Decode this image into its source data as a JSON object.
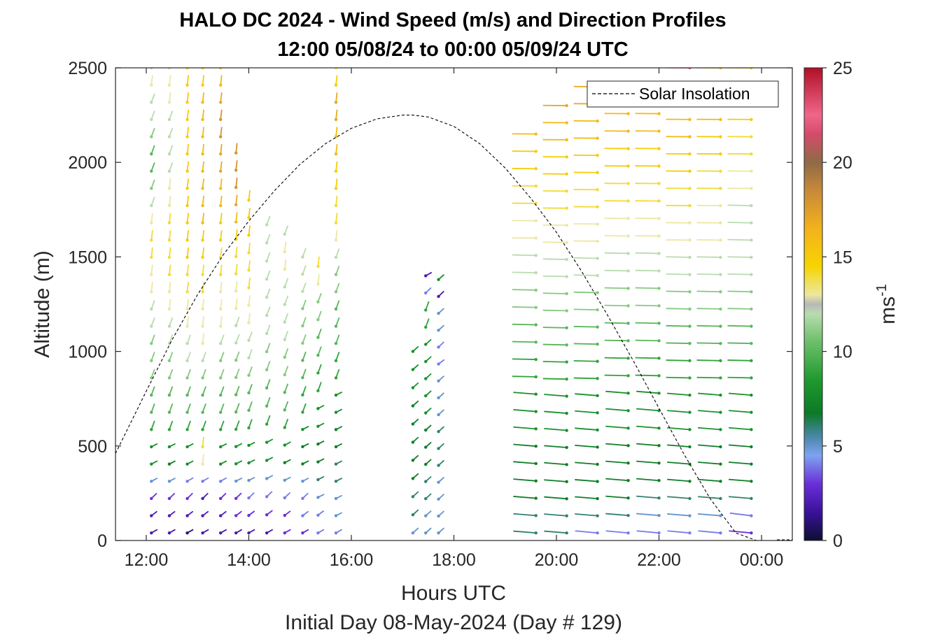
{
  "chart_data": {
    "type": "wind-barb-profile",
    "title_line1": "HALO DC 2024 - Wind Speed (m/s) and Direction Profiles",
    "title_line2": "12:00 05/08/24 to 00:00 05/09/24  UTC",
    "xlabel": "Hours UTC",
    "subtitle": "Initial Day 08-May-2024 (Day # 129)",
    "ylabel": "Altitude (m)",
    "colorbar_label": "ms",
    "colorbar_label_exp": "-1",
    "xlim": [
      11.4,
      24.6
    ],
    "ylim": [
      0,
      2500
    ],
    "x_ticks": [
      12,
      14,
      16,
      18,
      20,
      22,
      24
    ],
    "x_tick_labels": [
      "12:00",
      "14:00",
      "16:00",
      "18:00",
      "20:00",
      "22:00",
      "00:00"
    ],
    "y_ticks": [
      0,
      500,
      1000,
      1500,
      2000,
      2500
    ],
    "y_tick_labels": [
      "0",
      "500",
      "1000",
      "1500",
      "2000",
      "2500"
    ],
    "colorbar_range": [
      0,
      25
    ],
    "colorbar_ticks": [
      0,
      5,
      10,
      15,
      20,
      25
    ],
    "colorbar_tick_labels": [
      "0",
      "5",
      "10",
      "15",
      "20",
      "25"
    ],
    "legend": {
      "entries": [
        "Solar Insolation"
      ],
      "placement": "top-right",
      "style": "dashed-black"
    },
    "solar_insolation_curve": {
      "x": [
        11.4,
        12.0,
        12.5,
        13.0,
        13.5,
        14.0,
        14.5,
        15.0,
        15.5,
        16.0,
        16.5,
        17.0,
        17.2,
        17.5,
        18.0,
        18.5,
        19.0,
        19.5,
        20.0,
        20.5,
        21.0,
        21.5,
        22.0,
        22.5,
        23.0,
        23.5,
        23.9
      ],
      "y": [
        460,
        790,
        1060,
        1300,
        1510,
        1690,
        1850,
        1990,
        2100,
        2180,
        2230,
        2250,
        2250,
        2240,
        2190,
        2100,
        1970,
        1810,
        1630,
        1420,
        1190,
        950,
        700,
        450,
        220,
        40,
        0
      ]
    },
    "profiles": [
      {
        "time": 12.1,
        "top": 2500,
        "speeds": [
          2,
          2,
          3,
          5,
          8,
          8,
          9,
          10,
          10,
          11,
          11,
          11,
          12,
          12,
          13,
          13,
          14,
          14,
          13,
          12,
          11,
          10,
          10,
          11,
          12,
          12,
          13,
          12
        ]
      },
      {
        "time": 12.45,
        "top": 2500,
        "speeds": [
          2,
          2,
          3,
          5,
          7,
          8,
          9,
          10,
          10,
          11,
          11,
          12,
          12,
          13,
          13,
          14,
          14,
          14,
          14,
          13,
          13,
          12,
          12,
          12,
          12,
          13,
          13,
          12
        ]
      },
      {
        "time": 12.8,
        "top": 2500,
        "speeds": [
          1,
          2,
          3,
          4,
          8,
          8,
          9,
          10,
          10,
          11,
          12,
          12,
          13,
          13,
          14,
          14,
          15,
          15,
          15,
          15,
          15,
          15,
          15,
          15,
          15,
          15,
          15,
          15
        ]
      },
      {
        "time": 13.1,
        "top": 2500,
        "speeds": [
          2,
          2,
          2,
          4,
          13,
          14,
          9,
          10,
          10,
          11,
          12,
          13,
          13,
          13,
          14,
          14,
          15,
          15,
          16,
          16,
          16,
          16,
          16,
          16,
          16,
          16,
          15,
          15
        ]
      },
      {
        "time": 13.45,
        "top": 2500,
        "speeds": [
          2,
          2,
          3,
          4,
          8,
          8,
          9,
          10,
          10,
          11,
          11,
          12,
          13,
          13,
          13,
          14,
          14,
          15,
          15,
          16,
          16,
          17,
          17,
          18,
          18,
          17,
          16,
          16
        ]
      },
      {
        "time": 13.75,
        "top": 2050,
        "speeds": [
          2,
          3,
          3,
          5,
          8,
          8,
          9,
          10,
          10,
          11,
          11,
          12,
          12,
          13,
          13,
          14,
          14,
          15,
          16,
          17,
          18,
          18,
          18
        ]
      },
      {
        "time": 14.0,
        "top": 1800,
        "speeds": [
          2,
          3,
          4,
          5,
          8,
          8,
          9,
          10,
          10,
          11,
          12,
          12,
          13,
          13,
          14,
          14,
          14,
          15,
          15,
          15
        ]
      },
      {
        "time": 14.35,
        "top": 1670,
        "speeds": [
          2,
          3,
          4,
          5,
          8,
          8,
          9,
          10,
          10,
          11,
          11,
          12,
          12,
          12,
          12,
          12,
          12,
          12
        ]
      },
      {
        "time": 14.7,
        "top": 1620,
        "speeds": [
          3,
          3,
          4,
          5,
          7,
          8,
          9,
          10,
          10,
          11,
          11,
          12,
          12,
          12,
          12,
          13,
          13,
          12
        ]
      },
      {
        "time": 15.05,
        "top": 1500,
        "speeds": [
          3,
          4,
          4,
          5,
          7,
          7,
          8,
          9,
          9,
          10,
          10,
          11,
          11,
          11,
          12,
          12,
          12
        ]
      },
      {
        "time": 15.35,
        "top": 1450,
        "speeds": [
          4,
          4,
          5,
          6,
          7,
          7,
          8,
          8,
          9,
          9,
          10,
          10,
          11,
          11,
          13,
          14
        ]
      },
      {
        "time": 15.7,
        "top": 2500,
        "speeds": [
          4,
          5,
          5,
          6,
          6,
          7,
          7,
          8,
          8,
          9,
          9,
          10,
          10,
          10,
          11,
          11,
          12,
          13,
          14,
          14,
          15,
          15,
          16,
          16,
          17,
          17,
          15,
          14
        ]
      },
      {
        "time": 17.2,
        "top": 1000,
        "speeds": [
          5,
          6,
          6,
          7,
          7,
          7,
          7,
          7,
          8,
          8,
          8
        ]
      },
      {
        "time": 17.45,
        "top": 1400,
        "speeds": [
          5,
          5,
          6,
          6,
          7,
          7,
          7,
          8,
          8,
          8,
          8,
          8,
          9,
          9,
          4,
          2
        ]
      },
      {
        "time": 17.7,
        "top": 1380,
        "speeds": [
          5,
          5,
          5,
          5,
          6,
          6,
          6,
          5,
          5,
          5,
          4,
          4,
          5,
          5,
          2,
          8
        ]
      },
      {
        "time": 19.6,
        "top": 2150,
        "speeds": [
          6,
          6,
          7,
          7,
          7,
          7,
          8,
          8,
          8,
          9,
          9,
          10,
          10,
          11,
          11,
          12,
          12,
          13,
          13,
          14,
          14,
          15,
          15,
          16
        ]
      },
      {
        "time": 20.2,
        "top": 2300,
        "speeds": [
          6,
          6,
          7,
          7,
          7,
          7,
          8,
          8,
          8,
          9,
          9,
          10,
          10,
          11,
          11,
          12,
          12,
          13,
          13,
          14,
          14,
          15,
          15,
          16,
          16,
          17
        ]
      },
      {
        "time": 20.8,
        "top": 2400,
        "speeds": [
          4,
          6,
          7,
          7,
          7,
          7,
          8,
          8,
          8,
          9,
          9,
          10,
          10,
          11,
          11,
          12,
          12,
          13,
          13,
          14,
          14,
          15,
          15,
          16,
          16,
          17,
          17
        ]
      },
      {
        "time": 21.4,
        "top": 2350,
        "speeds": [
          4,
          6,
          7,
          7,
          7,
          7,
          8,
          8,
          8,
          9,
          9,
          10,
          10,
          11,
          11,
          12,
          12,
          13,
          13,
          14,
          14,
          15,
          15,
          16,
          16,
          16
        ]
      },
      {
        "time": 22.0,
        "top": 2350,
        "speeds": [
          4,
          5,
          6,
          7,
          7,
          7,
          8,
          8,
          8,
          9,
          9,
          10,
          10,
          11,
          11,
          12,
          12,
          13,
          13,
          14,
          14,
          15,
          15,
          16,
          16,
          16
        ]
      },
      {
        "time": 22.6,
        "top": 2500,
        "speeds": [
          4,
          5,
          6,
          7,
          7,
          7,
          8,
          8,
          8,
          9,
          9,
          10,
          10,
          11,
          11,
          12,
          12,
          13,
          13,
          14,
          14,
          15,
          15,
          16,
          16,
          17,
          18,
          22
        ]
      },
      {
        "time": 23.2,
        "top": 2500,
        "speeds": [
          4,
          5,
          6,
          7,
          7,
          7,
          8,
          8,
          8,
          9,
          9,
          10,
          10,
          11,
          11,
          12,
          12,
          13,
          13,
          13,
          14,
          14,
          15,
          15,
          16,
          16,
          16,
          16
        ]
      },
      {
        "time": 23.8,
        "top": 2500,
        "speeds": [
          3,
          4,
          6,
          7,
          7,
          7,
          8,
          8,
          8,
          9,
          9,
          10,
          10,
          11,
          11,
          12,
          12,
          12,
          12,
          12,
          13,
          13,
          14,
          14,
          15,
          15,
          15,
          15
        ]
      }
    ]
  }
}
